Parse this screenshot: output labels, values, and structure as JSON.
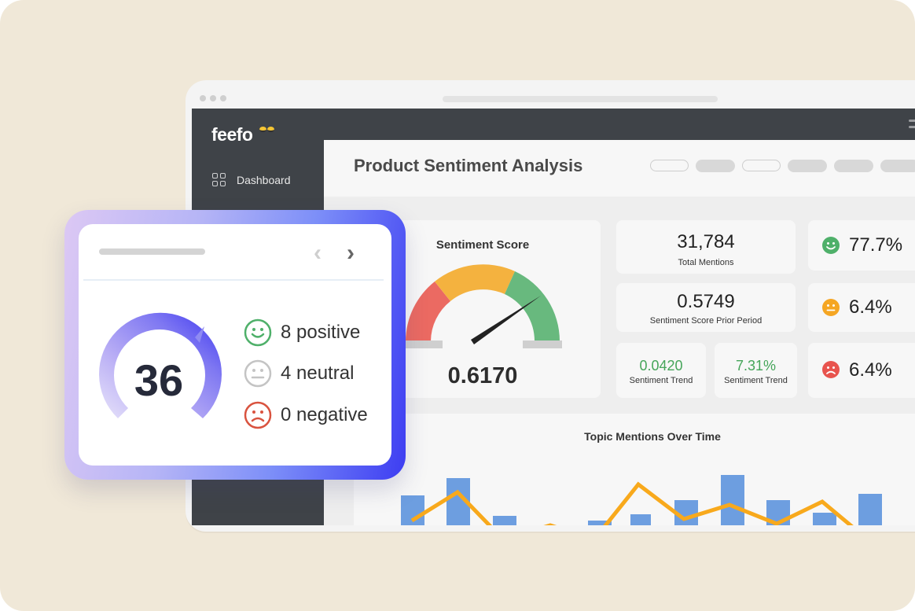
{
  "app": {
    "brand": "feefo",
    "nav": {
      "dashboard_label": "Dashboard"
    },
    "page_title": "Product Sentiment Analysis"
  },
  "sentiment_score": {
    "title": "Sentiment Score",
    "value": "0.6170",
    "gauge_level": 0.75
  },
  "stats": {
    "total_mentions": {
      "value": "31,784",
      "label": "Total Mentions"
    },
    "prior_period": {
      "value": "0.5749",
      "label": "Sentiment Score Prior Period"
    },
    "trend_a": {
      "value": "0.0420",
      "label": "Sentiment Trend"
    },
    "trend_b": {
      "value": "7.31%",
      "label": "Sentiment Trend"
    }
  },
  "sentiment_breakdown": [
    {
      "icon": "smile-face-icon",
      "value": "77.7%",
      "color": "#4fb06a"
    },
    {
      "icon": "neutral-face-icon",
      "value": "6.4%",
      "color": "#f5a623"
    },
    {
      "icon": "sad-face-icon",
      "value": "6.4%",
      "color": "#e8544e"
    }
  ],
  "topic_chart": {
    "title": "Topic Mentions Over Time"
  },
  "widget": {
    "score": "36",
    "score_level": 0.72,
    "rows": [
      {
        "icon": "smile-face-icon",
        "text": "8 positive",
        "color": "#4fb06a"
      },
      {
        "icon": "neutral-face-icon",
        "text": "4 neutral",
        "color": "#c4c4c4"
      },
      {
        "icon": "sad-face-icon",
        "text": "0 negative",
        "color": "#d9533f"
      }
    ]
  },
  "colors": {
    "background": "#f0e8d8",
    "sidebar": "#3f4348",
    "bar": "#6d9ee0",
    "line": "#f8a91c",
    "accent": "#3d3df2"
  }
}
